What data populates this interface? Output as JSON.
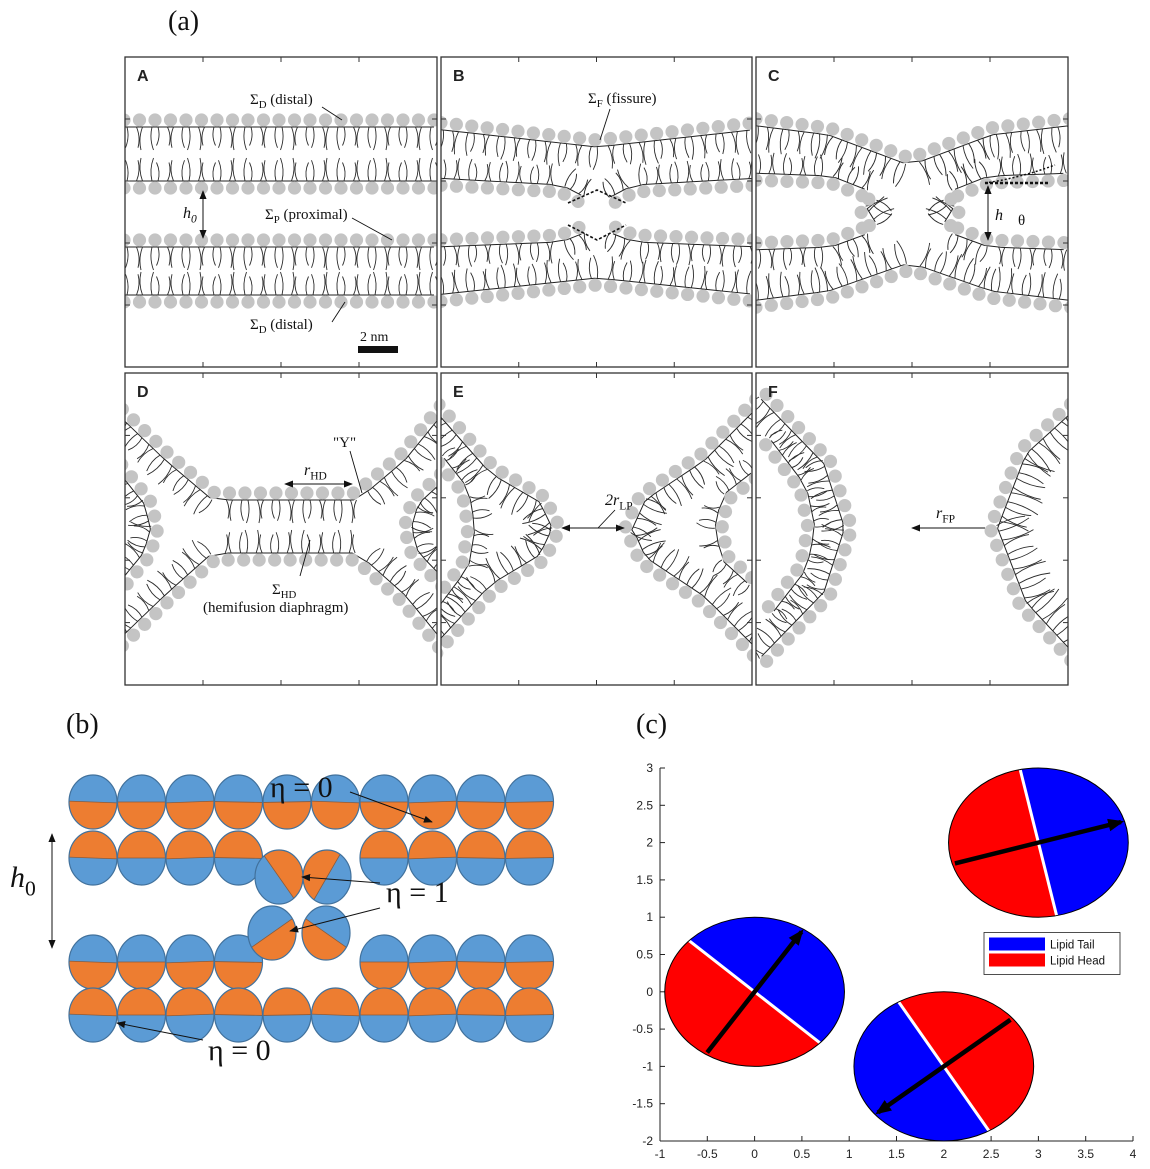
{
  "figure": {
    "panel_labels": [
      "(a)",
      "(b)",
      "(c)"
    ],
    "a": {
      "subpanels": [
        "A",
        "B",
        "C",
        "D",
        "E",
        "F"
      ],
      "labels": [
        {
          "main": "Σ",
          "sub": "D",
          "rest": " (distal)"
        },
        {
          "main": "Σ",
          "sub": "P",
          "rest": " (proximal)"
        },
        {
          "main": "h",
          "sub": "0"
        },
        {
          "main": "Σ",
          "sub": "D",
          "rest": " (distal)"
        },
        {
          "main": "2 nm"
        },
        {
          "main": "Σ",
          "sub": "F",
          "rest": " (fissure)"
        },
        {
          "main": "θ"
        },
        {
          "main": "h"
        },
        {
          "main": "r",
          "sub": "HD"
        },
        {
          "main": "\"Y\""
        },
        {
          "main": "Σ",
          "sub": "HD"
        },
        {
          "main": "(hemifusion diaphragm)"
        },
        {
          "main": "2r",
          "sub": "LP"
        },
        {
          "main": "r",
          "sub": "FP"
        }
      ]
    },
    "b": {
      "labels": [
        {
          "main": "η = 0"
        },
        {
          "main": "η = 1"
        },
        {
          "main": "h",
          "sub": "0"
        },
        {
          "main": "η = 0"
        }
      ]
    }
  },
  "chart_data": {
    "type": "ellipse",
    "x": [
      0,
      3,
      2
    ],
    "y": [
      0,
      2,
      -1
    ],
    "angle": [
      52,
      14,
      215
    ],
    "rx": 0.95,
    "ry": 1.0,
    "xlim": [
      -1,
      4
    ],
    "ylim": [
      -2,
      3
    ],
    "xticks": [
      -1,
      -0.5,
      0,
      0.5,
      1,
      1.5,
      2,
      2.5,
      3,
      3.5,
      4
    ],
    "yticks": [
      -2,
      -1.5,
      -1,
      -0.5,
      0,
      0.5,
      1,
      1.5,
      2,
      2.5,
      3
    ],
    "legend": [
      {
        "name": "Lipid Tail",
        "color": "#0000ff"
      },
      {
        "name": "Lipid Head",
        "color": "#ff0000"
      }
    ],
    "legend_position": "right"
  }
}
